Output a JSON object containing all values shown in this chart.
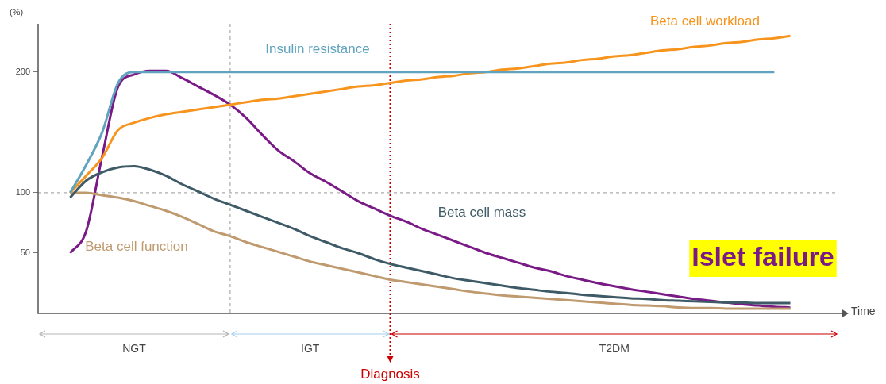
{
  "chart_data": {
    "type": "line",
    "ylabel": "(%)",
    "xlabel": "Time",
    "categories": [
      null,
      null,
      null,
      null,
      null,
      null,
      null,
      null,
      null,
      null,
      null,
      null,
      null,
      null,
      null,
      null,
      null,
      null,
      null,
      null,
      null,
      null,
      null,
      null,
      null,
      null,
      null,
      null,
      null,
      null,
      null,
      null,
      null,
      null,
      null,
      null,
      null,
      null,
      null,
      null,
      null,
      null,
      null,
      null,
      null,
      null,
      null,
      null,
      null,
      null,
      null
    ],
    "series": [
      {
        "name": "Insulin resistance",
        "color": "#5fa3bf",
        "values": [
          null,
          null,
          100,
          123,
          150,
          191,
          200,
          200,
          200,
          200,
          200,
          200,
          200,
          200,
          200,
          200,
          200,
          200,
          200,
          200,
          200,
          200,
          200,
          200,
          200,
          200,
          200,
          200,
          200,
          200,
          200,
          200,
          200,
          200,
          200,
          200,
          200,
          200,
          200,
          200,
          200,
          200,
          200,
          200,
          200,
          200,
          200,
          null,
          null,
          null,
          null
        ]
      },
      {
        "name": "Beta cell workload",
        "color": "#f7941d",
        "values": [
          null,
          null,
          100,
          114,
          129,
          152,
          158,
          162,
          165,
          167,
          169,
          171,
          173,
          175,
          177,
          178,
          180,
          182,
          184,
          186,
          188,
          189,
          191,
          193,
          194,
          196,
          197,
          199,
          200,
          202,
          203,
          205,
          207,
          208,
          210,
          211,
          213,
          214,
          216,
          218,
          219,
          221,
          222,
          224,
          225,
          227,
          228,
          230,
          null,
          null,
          null
        ]
      },
      {
        "name": "Beta cell mass",
        "color": "#3d5a66",
        "values": [
          null,
          null,
          96,
          110,
          117,
          121,
          122,
          119,
          114,
          107,
          101,
          95,
          90,
          85,
          80,
          75,
          70,
          64,
          59,
          54,
          50,
          45,
          41,
          38,
          35,
          32,
          29,
          27,
          25,
          23,
          21,
          19.5,
          18,
          17,
          15.5,
          14.5,
          13.5,
          12.5,
          12,
          11,
          10.5,
          10,
          9.5,
          9,
          9,
          8.5,
          8.5,
          8.5,
          null,
          null,
          null
        ]
      },
      {
        "name": "Beta cell function",
        "color": "#bf9a6e",
        "values": [
          null,
          null,
          100,
          100,
          98,
          96,
          93,
          89,
          85,
          80,
          74,
          68,
          64,
          59,
          55,
          51,
          47,
          43,
          40,
          37,
          34,
          31,
          28,
          26,
          24,
          22,
          20,
          18,
          16.5,
          15,
          14,
          13,
          12,
          11,
          10,
          9,
          8,
          7,
          6.5,
          6,
          5,
          4.5,
          4.5,
          4,
          4,
          4,
          4,
          4,
          null,
          null,
          null
        ]
      },
      {
        "name": "Islet failure",
        "color": "#7a1a86",
        "values": [
          null,
          null,
          50,
          68,
          130,
          188,
          198,
          201,
          201,
          195,
          188,
          181,
          173,
          162,
          148,
          135,
          126,
          116,
          109,
          101,
          93,
          87,
          81,
          76,
          70,
          65,
          60,
          55,
          50,
          46,
          42,
          38,
          35,
          31,
          28,
          25,
          22.5,
          20,
          18,
          16,
          14,
          12,
          10.5,
          9,
          7.5,
          6.5,
          5.5,
          4.8,
          null,
          null,
          null
        ]
      }
    ],
    "ylim": [
      0,
      240
    ],
    "yticks": [
      50,
      100,
      200
    ],
    "grid": false,
    "tick_labels": "y",
    "ref_lines": [
      {
        "axis": "y",
        "value": 100,
        "color": "#999999",
        "line_style": "dashed"
      }
    ],
    "annotations": [
      "NGT",
      "IGT",
      "T2DM",
      "Diagnosis"
    ]
  }
}
